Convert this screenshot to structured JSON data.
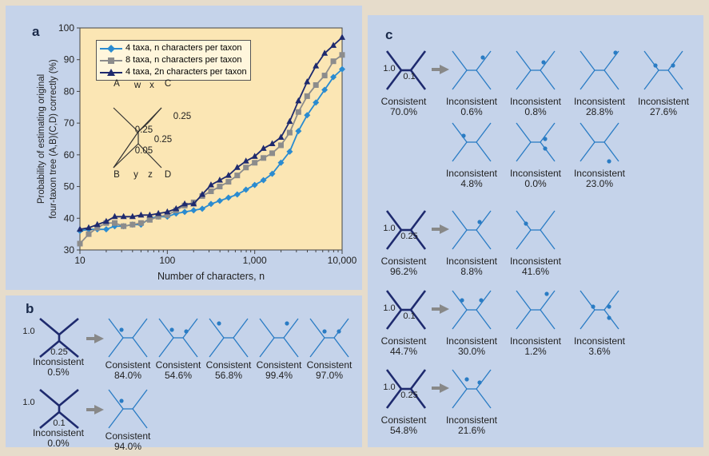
{
  "panel_labels": {
    "a": "a",
    "b": "b",
    "c": "c"
  },
  "chart_data": {
    "type": "line",
    "xscale": "log",
    "xlim": [
      10,
      10000
    ],
    "ylim": [
      30,
      100
    ],
    "xlabel": "Number of characters, n",
    "ylabel_line1": "Probability of estimating original",
    "ylabel_line2": "four-taxon tree (A,B)(C,D) correctly (%)",
    "x_ticks": [
      "10",
      "100",
      "1,000",
      "10,000"
    ],
    "y_ticks": [
      "30",
      "40",
      "50",
      "60",
      "70",
      "80",
      "90",
      "100"
    ],
    "x": [
      10,
      12.6,
      15.8,
      20,
      25,
      31.6,
      40,
      50,
      63,
      79,
      100,
      126,
      158,
      200,
      251,
      316,
      398,
      501,
      631,
      794,
      1000,
      1259,
      1585,
      1995,
      2512,
      3162,
      3981,
      5012,
      6310,
      7943,
      10000
    ],
    "series": [
      {
        "name": "4 taxa, n characters per taxon",
        "color": "#2a8bd0",
        "marker": "diamond",
        "values": [
          36,
          36.5,
          36.5,
          36.5,
          37.5,
          37.5,
          38,
          38,
          40,
          40.5,
          40.5,
          41.5,
          42,
          42.5,
          43,
          44.5,
          45.5,
          46.5,
          47.5,
          49,
          50.5,
          52,
          54,
          57.5,
          61,
          67.5,
          72.5,
          76.5,
          80.5,
          84.5,
          87
        ]
      },
      {
        "name": "8 taxa, n characters per taxon",
        "color": "#8c8c8c",
        "marker": "square",
        "values": [
          32,
          35,
          37,
          38.5,
          38.5,
          37.5,
          38,
          38.5,
          39.5,
          40.5,
          41,
          42.5,
          44,
          45,
          47,
          48.5,
          50,
          51.5,
          53.5,
          56,
          57.5,
          59,
          60.5,
          63,
          67,
          73.5,
          78.5,
          82,
          85,
          89.5,
          91.5
        ]
      },
      {
        "name": "4 taxa, 2n characters per taxon",
        "color": "#1e2a6e",
        "marker": "triangle",
        "values": [
          36.5,
          37,
          38,
          39,
          40.5,
          40.5,
          40.5,
          41,
          41,
          41.5,
          42,
          43,
          44.5,
          44.5,
          47.5,
          50.5,
          52,
          53.5,
          56,
          58,
          59.5,
          62,
          63.5,
          65.5,
          70.5,
          77,
          83,
          88,
          92,
          94.5,
          97
        ]
      }
    ],
    "legend_position": "top-left"
  },
  "inset_tree": {
    "labels": {
      "A": "A",
      "w": "w",
      "x": "x",
      "C": "C",
      "B": "B",
      "y": "y",
      "z": "z",
      "D": "D"
    },
    "branch_labels": [
      "0.25",
      "0.25",
      "0.25",
      "0.05"
    ]
  },
  "panel_b": {
    "rows": [
      {
        "orig_top": "1.0",
        "orig_bottom": "0.25",
        "orig_state": "Inconsistent",
        "orig_pct": "0.5%",
        "results": [
          [
            "Consistent",
            "84.0%"
          ],
          [
            "Consistent",
            "54.6%"
          ],
          [
            "Consistent",
            "56.8%"
          ],
          [
            "Consistent",
            "99.4%"
          ],
          [
            "Consistent",
            "97.0%"
          ]
        ]
      },
      {
        "orig_top": "1.0",
        "orig_bottom": "0.1",
        "orig_state": "Inconsistent",
        "orig_pct": "0.0%",
        "results": [
          [
            "Consistent",
            "94.0%"
          ]
        ]
      }
    ]
  },
  "panel_c": {
    "groups": [
      {
        "orig_top": "1.0",
        "orig_bottom": "0.1",
        "orig_state": "Consistent",
        "orig_pct": "70.0%",
        "results": [
          [
            "Inconsistent",
            "0.6%"
          ],
          [
            "Inconsistent",
            "0.8%"
          ],
          [
            "Inconsistent",
            "28.8%"
          ],
          [
            "Inconsistent",
            "27.6%"
          ],
          [
            "Inconsistent",
            "4.8%"
          ],
          [
            "Inconsistent",
            "0.0%"
          ],
          [
            "Inconsistent",
            "23.0%"
          ]
        ]
      },
      {
        "orig_top": "1.0",
        "orig_bottom": "0.25",
        "orig_state": "Consistent",
        "orig_pct": "96.2%",
        "results": [
          [
            "Inconsistent",
            "8.8%"
          ],
          [
            "Inconsistent",
            "41.6%"
          ]
        ]
      },
      {
        "orig_top": "1.0",
        "orig_bottom": "0.1",
        "orig_state": "Consistent",
        "orig_pct": "44.7%",
        "results": [
          [
            "Inconsistent",
            "30.0%"
          ],
          [
            "Inconsistent",
            "1.2%"
          ],
          [
            "Inconsistent",
            "3.6%"
          ]
        ]
      },
      {
        "orig_top": "1.0",
        "orig_bottom": "0.25",
        "orig_state": "Consistent",
        "orig_pct": "54.8%",
        "results": [
          [
            "Inconsistent",
            "21.6%"
          ]
        ]
      }
    ]
  },
  "colors": {
    "dark_tree": "#1e2a6e",
    "light_tree": "#2a7cc4",
    "arrow": "#888888",
    "panel_bg": "#c5d3ea",
    "plot_bg": "#fbe6b4"
  }
}
